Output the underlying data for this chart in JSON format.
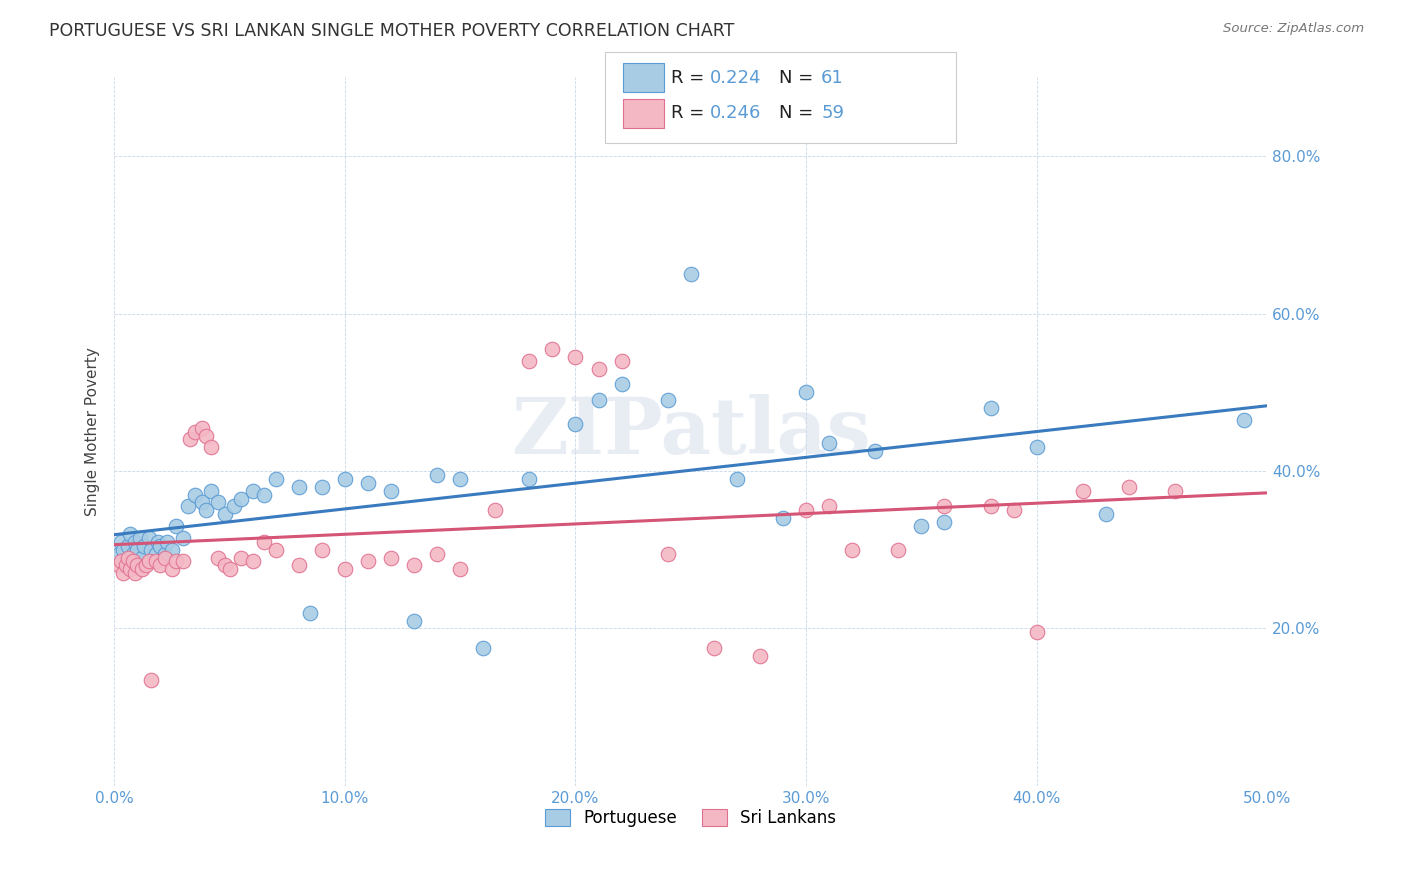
{
  "title": "PORTUGUESE VS SRI LANKAN SINGLE MOTHER POVERTY CORRELATION CHART",
  "source": "Source: ZipAtlas.com",
  "ylabel": "Single Mother Poverty",
  "xlim": [
    0.0,
    0.5
  ],
  "ylim": [
    0.0,
    0.9
  ],
  "xticks": [
    0.0,
    0.1,
    0.2,
    0.3,
    0.4,
    0.5
  ],
  "xtick_labels": [
    "0.0%",
    "10.0%",
    "20.0%",
    "30.0%",
    "40.0%",
    "50.0%"
  ],
  "yticks": [
    0.2,
    0.4,
    0.6,
    0.8
  ],
  "ytick_labels": [
    "20.0%",
    "40.0%",
    "60.0%",
    "80.0%"
  ],
  "blue_color": "#a8cce4",
  "pink_color": "#f4b8c4",
  "blue_edge_color": "#5b9bd5",
  "pink_edge_color": "#e07090",
  "blue_line_color": "#3a7bbf",
  "pink_line_color": "#d45575",
  "tick_label_color": "#5b9bd5",
  "R_blue": 0.224,
  "N_blue": 61,
  "R_pink": 0.246,
  "N_pink": 59,
  "legend_label_blue": "Portuguese",
  "legend_label_pink": "Sri Lankans",
  "watermark": "ZIPatlas",
  "blue_x": [
    0.002,
    0.003,
    0.004,
    0.005,
    0.006,
    0.007,
    0.008,
    0.009,
    0.01,
    0.011,
    0.012,
    0.013,
    0.015,
    0.016,
    0.018,
    0.019,
    0.02,
    0.022,
    0.023,
    0.025,
    0.027,
    0.03,
    0.032,
    0.035,
    0.038,
    0.04,
    0.042,
    0.045,
    0.048,
    0.052,
    0.055,
    0.06,
    0.065,
    0.07,
    0.08,
    0.085,
    0.09,
    0.1,
    0.11,
    0.12,
    0.13,
    0.14,
    0.15,
    0.16,
    0.18,
    0.2,
    0.21,
    0.22,
    0.24,
    0.25,
    0.27,
    0.29,
    0.3,
    0.31,
    0.33,
    0.35,
    0.36,
    0.38,
    0.4,
    0.43,
    0.49
  ],
  "blue_y": [
    0.295,
    0.31,
    0.3,
    0.285,
    0.305,
    0.32,
    0.295,
    0.31,
    0.3,
    0.315,
    0.29,
    0.305,
    0.315,
    0.3,
    0.295,
    0.31,
    0.305,
    0.295,
    0.31,
    0.3,
    0.33,
    0.315,
    0.355,
    0.37,
    0.36,
    0.35,
    0.375,
    0.36,
    0.345,
    0.355,
    0.365,
    0.375,
    0.37,
    0.39,
    0.38,
    0.22,
    0.38,
    0.39,
    0.385,
    0.375,
    0.21,
    0.395,
    0.39,
    0.175,
    0.39,
    0.46,
    0.49,
    0.51,
    0.49,
    0.65,
    0.39,
    0.34,
    0.5,
    0.435,
    0.425,
    0.33,
    0.335,
    0.48,
    0.43,
    0.345,
    0.465
  ],
  "pink_x": [
    0.002,
    0.003,
    0.004,
    0.005,
    0.006,
    0.007,
    0.008,
    0.009,
    0.01,
    0.012,
    0.014,
    0.015,
    0.016,
    0.018,
    0.02,
    0.022,
    0.025,
    0.027,
    0.03,
    0.033,
    0.035,
    0.038,
    0.04,
    0.042,
    0.045,
    0.048,
    0.05,
    0.055,
    0.06,
    0.065,
    0.07,
    0.08,
    0.09,
    0.1,
    0.11,
    0.12,
    0.13,
    0.14,
    0.15,
    0.165,
    0.18,
    0.19,
    0.2,
    0.21,
    0.22,
    0.24,
    0.26,
    0.28,
    0.3,
    0.31,
    0.32,
    0.34,
    0.36,
    0.38,
    0.39,
    0.4,
    0.42,
    0.44,
    0.46
  ],
  "pink_y": [
    0.28,
    0.285,
    0.27,
    0.28,
    0.29,
    0.275,
    0.285,
    0.27,
    0.28,
    0.275,
    0.28,
    0.285,
    0.135,
    0.285,
    0.28,
    0.29,
    0.275,
    0.285,
    0.285,
    0.44,
    0.45,
    0.455,
    0.445,
    0.43,
    0.29,
    0.28,
    0.275,
    0.29,
    0.285,
    0.31,
    0.3,
    0.28,
    0.3,
    0.275,
    0.285,
    0.29,
    0.28,
    0.295,
    0.275,
    0.35,
    0.54,
    0.555,
    0.545,
    0.53,
    0.54,
    0.295,
    0.175,
    0.165,
    0.35,
    0.355,
    0.3,
    0.3,
    0.355,
    0.355,
    0.35,
    0.195,
    0.375,
    0.38,
    0.375
  ]
}
